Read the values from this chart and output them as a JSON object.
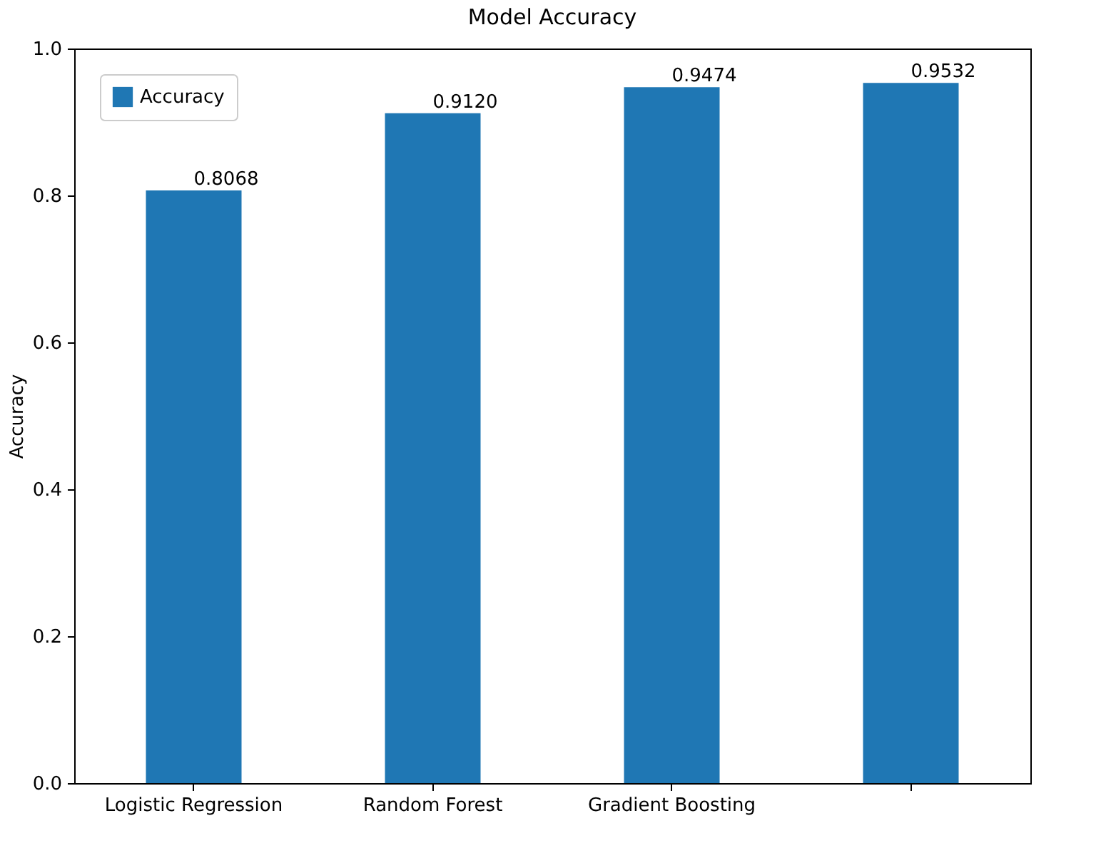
{
  "chart_data": {
    "type": "bar",
    "title": "Model Accuracy",
    "ylabel": "Accuracy",
    "categories": [
      "Logistic Regression",
      "Random Forest",
      "Gradient Boosting",
      null
    ],
    "series": [
      {
        "name": "Accuracy",
        "color": "#1f77b4",
        "values": [
          0.8068,
          0.912,
          0.9474,
          0.9532
        ]
      }
    ],
    "ylim": [
      0,
      1
    ],
    "yticks": [
      {
        "value": 0,
        "label": "0.0"
      },
      0.2,
      0.4,
      0.6,
      0.8,
      {
        "value": 1,
        "label": "1.0"
      }
    ],
    "value_labels": [
      "0.8068",
      "0.9120",
      "0.9474",
      "0.9532"
    ],
    "legend": "top left",
    "grid": false
  }
}
